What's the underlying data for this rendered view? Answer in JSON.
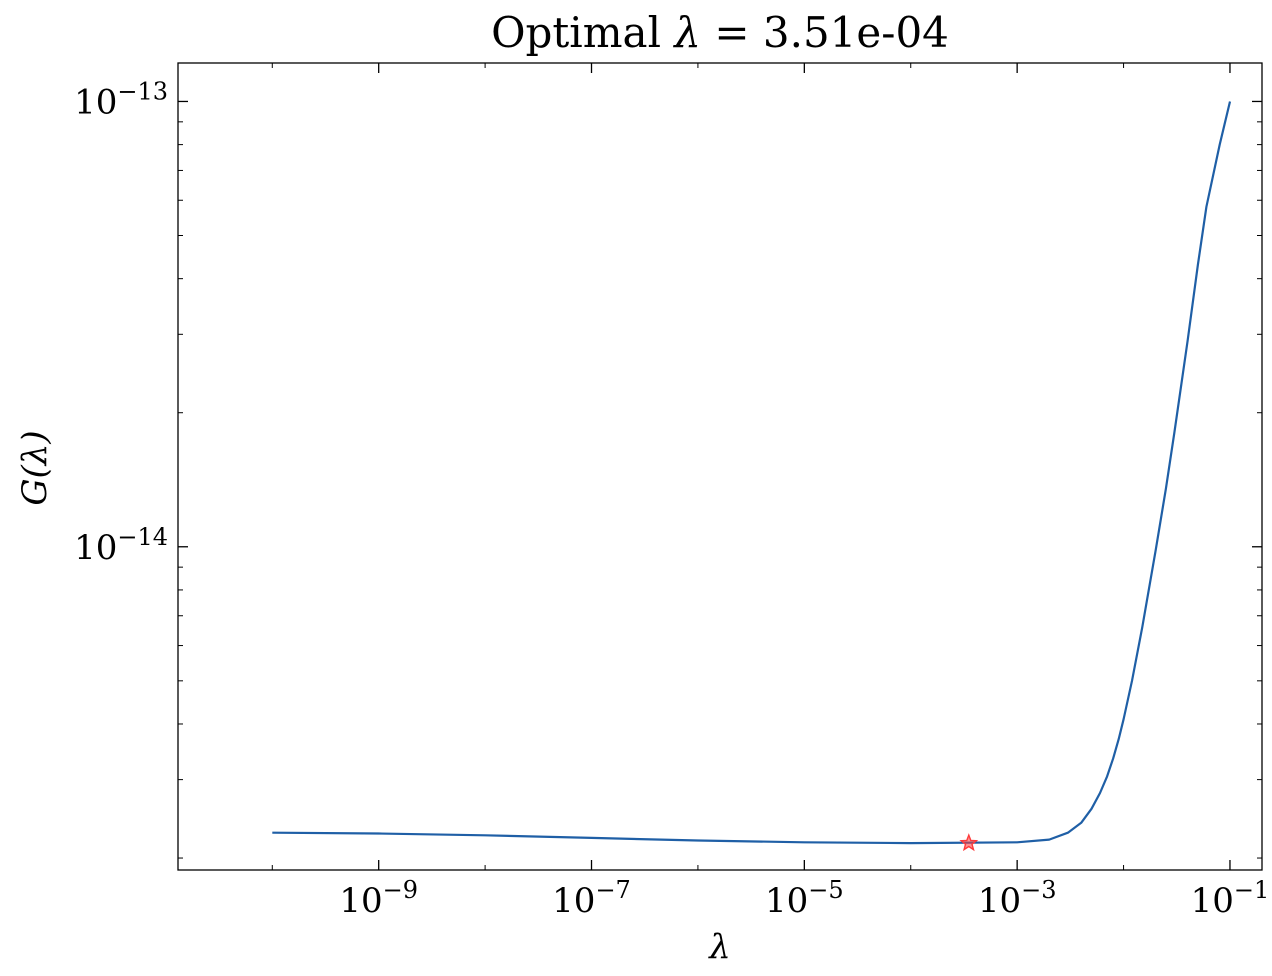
{
  "chart_data": {
    "type": "line",
    "title": "Optimal λ = 3.51e-04",
    "title_parts": {
      "prefix": "Optimal ",
      "symbol": "λ",
      "suffix": " = 3.51e-04"
    },
    "xlabel": "λ",
    "ylabel": "G(λ)",
    "x_scale": "log",
    "y_scale": "log",
    "xlim": [
      1.3e-11,
      0.2
    ],
    "ylim": [
      1.88e-15,
      1.22e-13
    ],
    "x_ticks": [
      {
        "base": "10",
        "exp": "−9",
        "value": 1e-09
      },
      {
        "base": "10",
        "exp": "−7",
        "value": 1e-07
      },
      {
        "base": "10",
        "exp": "−5",
        "value": 1e-05
      },
      {
        "base": "10",
        "exp": "−3",
        "value": 0.001
      },
      {
        "base": "10",
        "exp": "−1",
        "value": 0.1
      }
    ],
    "y_ticks": [
      {
        "base": "10",
        "exp": "−14",
        "value": 1e-14
      },
      {
        "base": "10",
        "exp": "−13",
        "value": 1e-13
      }
    ],
    "grid": false,
    "series": [
      {
        "color": "#1f5fa6",
        "x": [
          1e-10,
          1e-09,
          1e-08,
          1e-07,
          1e-06,
          1e-05,
          0.0001,
          0.001,
          0.002,
          0.003,
          0.004,
          0.005,
          0.006,
          0.007,
          0.008,
          0.009,
          0.01,
          0.012,
          0.015,
          0.02,
          0.025,
          0.03,
          0.04,
          0.05,
          0.06,
          0.08,
          0.1
        ],
        "y": [
          2.28e-15,
          2.27e-15,
          2.25e-15,
          2.22e-15,
          2.19e-15,
          2.17e-15,
          2.16e-15,
          2.17e-15,
          2.2e-15,
          2.28e-15,
          2.4e-15,
          2.58e-15,
          2.8e-15,
          3.05e-15,
          3.35e-15,
          3.7e-15,
          4.1e-15,
          5e-15,
          6.6e-15,
          9.8e-15,
          1.35e-14,
          1.8e-14,
          2.9e-14,
          4.3e-14,
          5.8e-14,
          8e-14,
          1e-13
        ]
      }
    ],
    "marker": {
      "x": 0.000351,
      "y": 2.16e-15,
      "shape": "star",
      "color": "#ff3b3b"
    }
  }
}
